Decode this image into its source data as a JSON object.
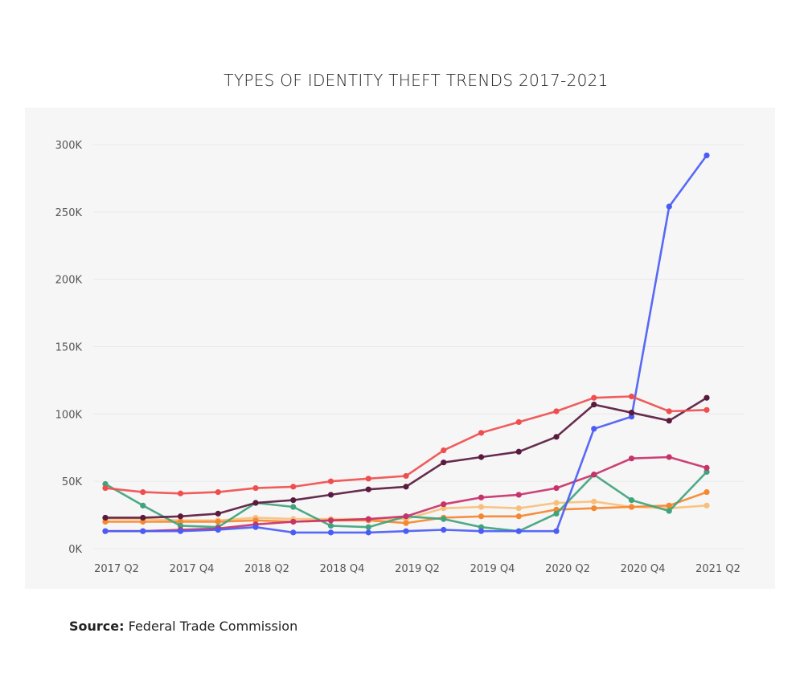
{
  "source": {
    "label": "Source:",
    "text": "Federal Trade Commission"
  },
  "chart_data": {
    "type": "line",
    "title": "TYPES OF IDENTITY THEFT TRENDS 2017-2021",
    "xlabel": "",
    "ylabel": "",
    "ylim": [
      0,
      300000
    ],
    "yticks": [
      0,
      50000,
      100000,
      150000,
      200000,
      250000,
      300000
    ],
    "ytick_labels": [
      "0K",
      "50K",
      "100K",
      "150K",
      "200K",
      "250K",
      "300K"
    ],
    "grid": true,
    "legend": "none",
    "x": [
      "2017 Q2",
      "2017 Q3",
      "2017 Q4",
      "2018 Q1",
      "2018 Q2",
      "2018 Q3",
      "2018 Q4",
      "2019 Q1",
      "2019 Q2",
      "2019 Q3",
      "2019 Q4",
      "2020 Q1",
      "2020 Q2",
      "2020 Q3",
      "2020 Q4",
      "2021 Q1",
      "2021 Q2"
    ],
    "xtick_labels": [
      "2017 Q2",
      "",
      "2017 Q4",
      "",
      "2018 Q2",
      "",
      "2018 Q4",
      "",
      "2019 Q2",
      "",
      "2019 Q4",
      "",
      "2020 Q2",
      "",
      "2020 Q4",
      "",
      "2021 Q2"
    ],
    "series": [
      {
        "name": "Light orange series",
        "color": "#f7c07a",
        "values": [
          22000,
          22000,
          21000,
          21000,
          23000,
          22000,
          22000,
          22000,
          22000,
          30000,
          31000,
          30000,
          34000,
          35000,
          31000,
          30000,
          32000
        ]
      },
      {
        "name": "Orange series",
        "color": "#f5872f",
        "values": [
          20000,
          20000,
          20000,
          20000,
          21000,
          20000,
          21000,
          21000,
          19000,
          23000,
          24000,
          24000,
          29000,
          30000,
          31000,
          32000,
          42000
        ]
      },
      {
        "name": "Green series",
        "color": "#3fa37c",
        "values": [
          48000,
          32000,
          17000,
          16000,
          34000,
          31000,
          17000,
          16000,
          24000,
          22000,
          16000,
          13000,
          26000,
          55000,
          36000,
          28000,
          57000
        ]
      },
      {
        "name": "Magenta series",
        "color": "#c8326a",
        "values": [
          13000,
          13000,
          14000,
          15000,
          18000,
          20000,
          21000,
          22000,
          24000,
          33000,
          38000,
          40000,
          45000,
          55000,
          67000,
          68000,
          60000
        ]
      },
      {
        "name": "Blue series",
        "color": "#4a5cf5",
        "values": [
          13000,
          13000,
          13000,
          14000,
          16000,
          12000,
          12000,
          12000,
          13000,
          14000,
          13000,
          13000,
          13000,
          89000,
          98000,
          254000,
          292000
        ]
      },
      {
        "name": "Dark purple series",
        "color": "#5a1a3f",
        "values": [
          23000,
          23000,
          24000,
          26000,
          34000,
          36000,
          40000,
          44000,
          46000,
          64000,
          68000,
          72000,
          83000,
          107000,
          101000,
          95000,
          112000
        ]
      },
      {
        "name": "Red series",
        "color": "#f04e4e",
        "values": [
          45000,
          42000,
          41000,
          42000,
          45000,
          46000,
          50000,
          52000,
          54000,
          73000,
          86000,
          94000,
          102000,
          112000,
          113000,
          102000,
          103000
        ]
      }
    ]
  }
}
